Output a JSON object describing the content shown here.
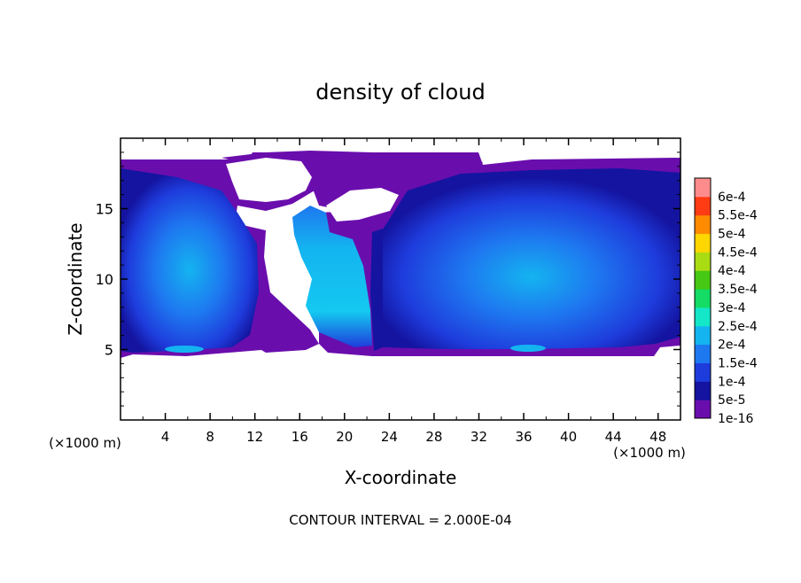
{
  "chart_data": {
    "type": "heatmap",
    "title": "density of cloud",
    "xlabel": "X-coordinate",
    "ylabel": "Z-coordinate",
    "x_unit_label": "(×1000 m)",
    "z_unit_label": "(×1000 m)",
    "footer": "CONTOUR INTERVAL = 2.000E-04",
    "xlim": [
      0,
      50
    ],
    "ylim": [
      0,
      20
    ],
    "x_ticks": [
      "4",
      "8",
      "12",
      "16",
      "20",
      "24",
      "28",
      "32",
      "36",
      "40",
      "44",
      "48"
    ],
    "y_ticks": [
      "5",
      "10",
      "15"
    ],
    "colorbar": {
      "labels": [
        "1e-16",
        "5e-5",
        "1e-4",
        "1.5e-4",
        "2e-4",
        "2.5e-4",
        "3e-4",
        "3.5e-4",
        "4e-4",
        "4.5e-4",
        "5e-4",
        "5.5e-4",
        "6e-4"
      ],
      "colors": [
        "#6a0dad",
        "#1414a0",
        "#1e3cdc",
        "#1e78f0",
        "#14b4f0",
        "#14e6c8",
        "#14dc64",
        "#46c814",
        "#aadc14",
        "#ffd700",
        "#ff8c00",
        "#ff3c14",
        "#ff8c8c"
      ]
    },
    "cloud_extent": {
      "base_z": 4.8,
      "top_z": 18.5,
      "max_density": 0.0002
    },
    "region_colors": {
      "empty": "#ffffff",
      "trace": "#6a0dad",
      "low": "#1414a0",
      "mid": "#1e3cdc",
      "high": "#1e78f0",
      "peak": "#14b4f0",
      "cyan": "#14e6e6"
    }
  }
}
